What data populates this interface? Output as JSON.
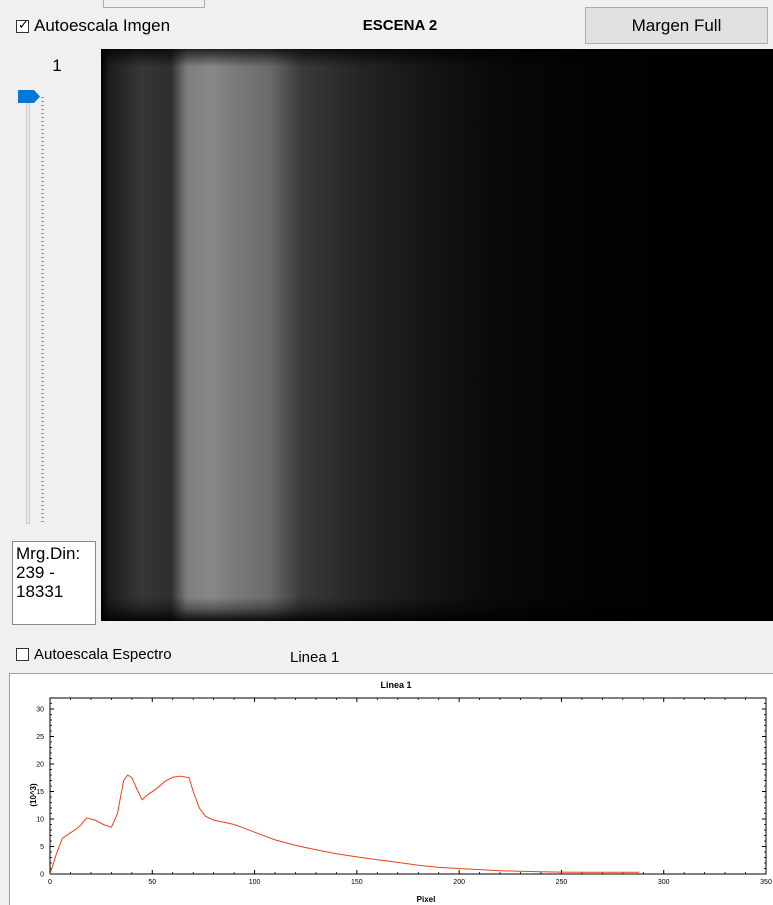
{
  "header": {
    "autoscale_image_label": "Autoescala Imgen",
    "autoscale_image_checked": true,
    "scene_title": "ESCENA 2",
    "margin_button_label": "Margen Full"
  },
  "slider": {
    "value": "1",
    "level": 0.0
  },
  "dynamic_range": {
    "label": "Mrg.Din:",
    "range_line": "239 -",
    "max_line": "18331"
  },
  "spectrum": {
    "autoscale_label": "Autoescala Espectro",
    "autoscale_checked": false,
    "line_label": "Linea 1"
  },
  "colors": {
    "accent": "#0078d7",
    "spectrum_line": "#e8431b"
  },
  "chart_data": {
    "type": "line",
    "title": "Linea 1",
    "xlabel": "Pixel",
    "ylabel": "(10^3)",
    "xlim": [
      0,
      350
    ],
    "ylim": [
      0,
      32
    ],
    "xticks": [
      "0",
      "50",
      "100",
      "150",
      "200",
      "250",
      "300",
      "350"
    ],
    "yticks": [
      "0",
      "5",
      "10",
      "15",
      "20",
      "25",
      "30"
    ],
    "grid": false,
    "series": [
      {
        "x": [
          0,
          3,
          6,
          10,
          14,
          18,
          22,
          26,
          30,
          33,
          36,
          38,
          40,
          43,
          45,
          48,
          52,
          56,
          60,
          64,
          68,
          70,
          73,
          76,
          80,
          85,
          90,
          95,
          100,
          110,
          120,
          130,
          140,
          150,
          160,
          170,
          180,
          190,
          200,
          210,
          220,
          230,
          240,
          250,
          260,
          270,
          280,
          288
        ],
        "y": [
          0,
          3.5,
          6.5,
          7.5,
          8.5,
          10.2,
          9.8,
          9,
          8.5,
          11,
          17,
          18,
          17.5,
          15,
          13.5,
          14.5,
          15.5,
          16.8,
          17.6,
          17.8,
          17.5,
          15,
          12,
          10.5,
          9.8,
          9.4,
          9,
          8.3,
          7.6,
          6.2,
          5.2,
          4.4,
          3.7,
          3.1,
          2.6,
          2.1,
          1.6,
          1.2,
          1.0,
          0.8,
          0.6,
          0.5,
          0.4,
          0.35,
          0.3,
          0.3,
          0.3,
          0.3
        ]
      }
    ]
  }
}
